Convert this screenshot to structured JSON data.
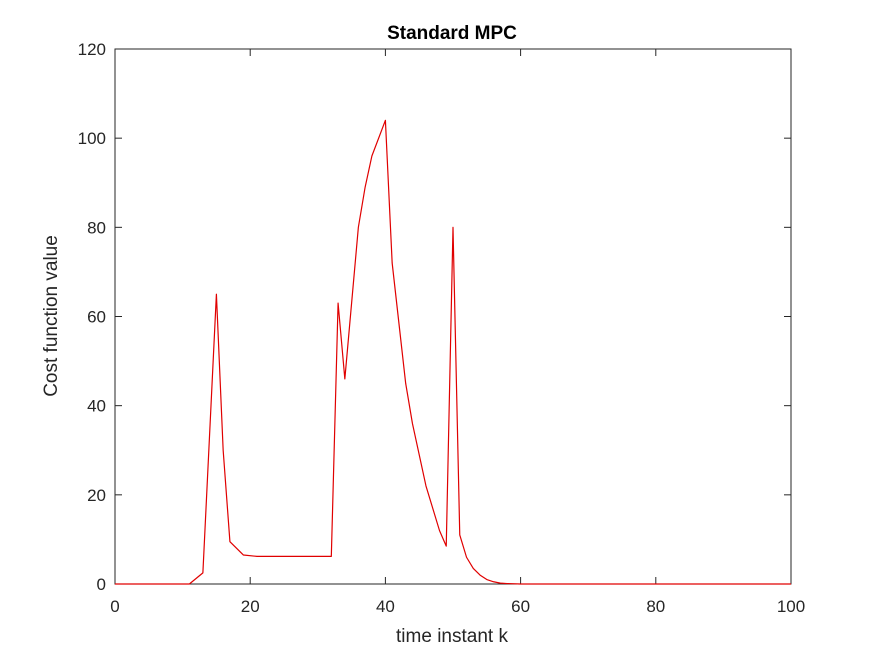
{
  "chart_data": {
    "type": "line",
    "title": "Standard MPC",
    "xlabel": "time instant k",
    "ylabel": "Cost function value",
    "xlim": [
      0,
      100
    ],
    "ylim": [
      0,
      120
    ],
    "xticks": [
      0,
      20,
      40,
      60,
      80,
      100
    ],
    "yticks": [
      0,
      20,
      40,
      60,
      80,
      100,
      120
    ],
    "grid": false,
    "line_color": "#e00000",
    "series": [
      {
        "x": [
          0,
          11,
          13,
          15,
          16,
          17,
          19,
          21,
          25,
          28,
          32,
          33,
          34,
          36,
          37,
          38,
          40,
          41,
          43,
          44,
          46,
          48,
          49,
          50,
          51,
          52,
          53,
          54,
          55,
          56,
          57,
          58,
          60,
          65,
          100
        ],
        "values": [
          0,
          0,
          2.5,
          65,
          30,
          9.5,
          6.5,
          6.2,
          6.2,
          6.2,
          6.2,
          63,
          46,
          80,
          89,
          96,
          104,
          72,
          45,
          36,
          22,
          12,
          8.5,
          80,
          11,
          6,
          3.5,
          2,
          1,
          0.5,
          0.2,
          0.1,
          0,
          0,
          0
        ]
      }
    ]
  }
}
